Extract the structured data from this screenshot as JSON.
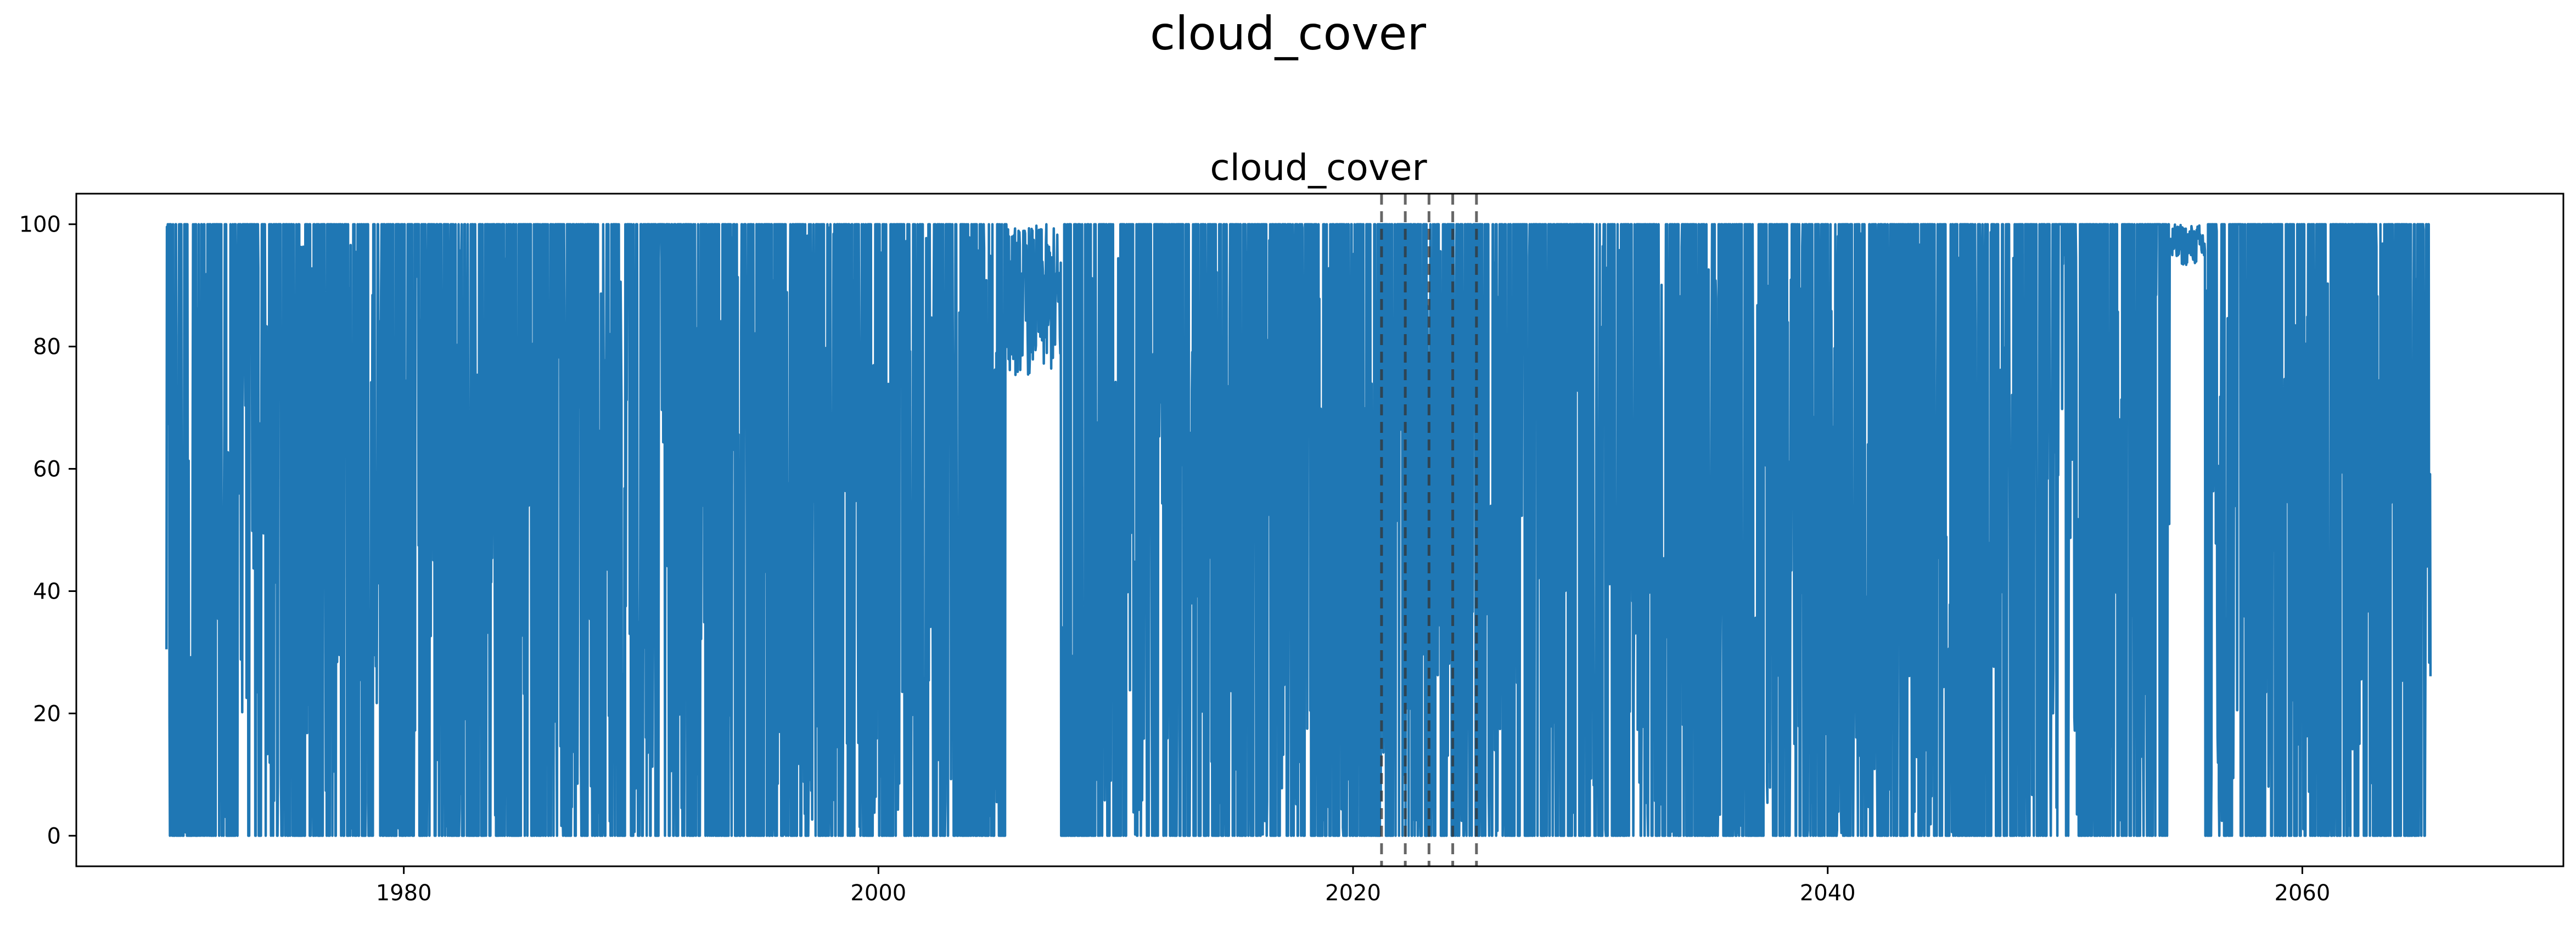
{
  "figure": {
    "suptitle": "cloud_cover"
  },
  "chart_data": {
    "type": "line",
    "title": "cloud_cover",
    "xlabel": "",
    "ylabel": "",
    "xlim": [
      1966.2,
      2071.0
    ],
    "ylim": [
      -5,
      105
    ],
    "x_ticks": [
      1980,
      2000,
      2020,
      2040,
      2060
    ],
    "y_ticks": [
      0,
      20,
      40,
      60,
      80,
      100
    ],
    "x_tick_labels": [
      "1980",
      "2000",
      "2020",
      "2040",
      "2060"
    ],
    "y_tick_labels": [
      "0",
      "20",
      "40",
      "60",
      "80",
      "100"
    ],
    "grid": false,
    "legend": "none",
    "series": [
      {
        "color": "#1f77b4",
        "x_range": [
          1970.0,
          2065.4
        ],
        "value_range": [
          0,
          100
        ],
        "dense_oscillation": true,
        "gaps": [
          {
            "x": [
              2005.4,
              2007.7
            ],
            "value_range": [
              45,
              100
            ]
          },
          {
            "x": [
              2054.4,
              2055.9
            ],
            "value_range": [
              85,
              100
            ]
          }
        ]
      }
    ],
    "vertical_lines": {
      "x": [
        2021.2,
        2022.2,
        2023.2,
        2024.2,
        2025.2
      ],
      "style": "dashed",
      "color": "#333333"
    },
    "colors": {
      "line": "#1f77b4",
      "vlines": "#333333",
      "axes": "#000000"
    }
  }
}
